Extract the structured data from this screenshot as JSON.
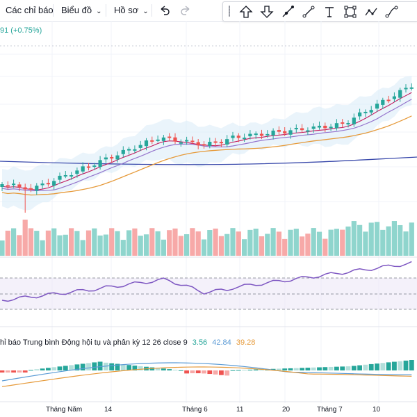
{
  "toolbar": {
    "indicators_label": "Các chỉ báo",
    "chart_type_label": "Biểu đồ",
    "profile_label": "Hồ sơ"
  },
  "drawing_tools": [
    "arrow-up-icon",
    "arrow-down-icon",
    "trend-line-icon",
    "ray-line-icon",
    "text-icon",
    "rectangle-icon",
    "path-icon",
    "curve-icon"
  ],
  "price_change": "91 (+0.75%)",
  "macd": {
    "label": "hỉ báo Trung bình Động hội tụ và phân kỳ",
    "params": "12 26 close 9",
    "histogram": "3.56",
    "macd": "42.84",
    "signal": "39.28"
  },
  "x_axis": [
    "Tháng Năm",
    "14",
    "Tháng 6",
    "11",
    "20",
    "Tháng 7",
    "10"
  ],
  "colors": {
    "up": "#26a69a",
    "down": "#ef5350",
    "vol_up": "#8fd5cd",
    "vol_down": "#f7a9a8",
    "ma_fast": "#c2185b",
    "ma_mid": "#9575cd",
    "ma_slow": "#e69a3a",
    "ma_long": "#3949ab",
    "rsi": "#7e57c2"
  }
}
